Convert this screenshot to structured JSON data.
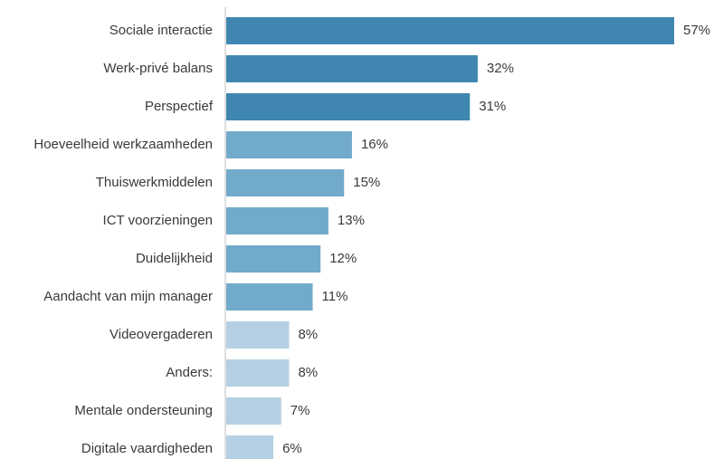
{
  "chart_data": {
    "type": "bar",
    "orientation": "horizontal",
    "categories": [
      "Sociale interactie",
      "Werk-privé balans",
      "Perspectief",
      "Hoeveelheid werkzaamheden",
      "Thuiswerkmiddelen",
      "ICT voorzieningen",
      "Duidelijkheid",
      "Aandacht van mijn manager",
      "Videovergaderen",
      "Anders:",
      "Mentale ondersteuning",
      "Digitale vaardigheden"
    ],
    "values": [
      57,
      32,
      31,
      16,
      15,
      13,
      12,
      11,
      8,
      8,
      7,
      6
    ],
    "value_labels": [
      "57%",
      "32%",
      "31%",
      "16%",
      "15%",
      "13%",
      "12%",
      "11%",
      "8%",
      "8%",
      "7%",
      "6%"
    ],
    "xlim": [
      0,
      57
    ],
    "grid": false,
    "legend": "none",
    "colors": [
      "#3f87b0",
      "#3f87b0",
      "#3f87b0",
      "#72aacb",
      "#72aacb",
      "#72aacb",
      "#72aacb",
      "#72aacb",
      "#b4d0e2",
      "#b4d0e2",
      "#b4d0e2",
      "#b4d0e2"
    ]
  }
}
